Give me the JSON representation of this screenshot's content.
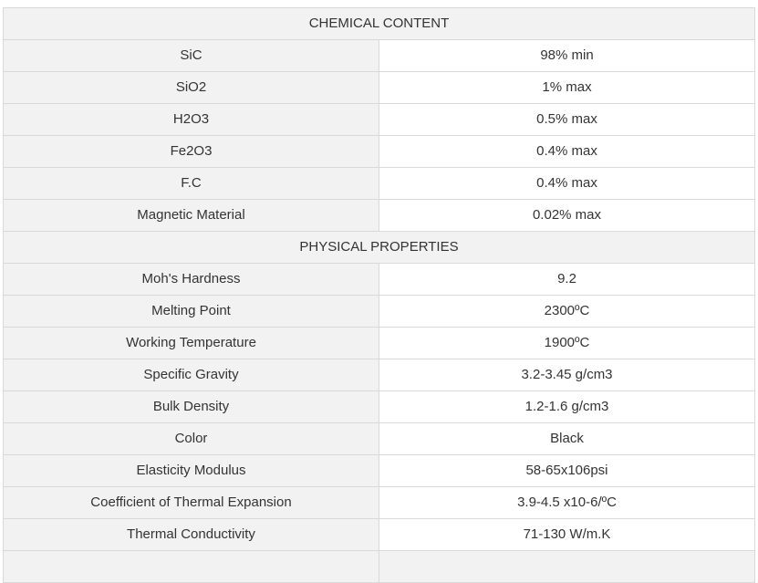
{
  "sections": [
    {
      "title": "CHEMICAL CONTENT",
      "rows": [
        {
          "label": "SiC",
          "value": "98% min"
        },
        {
          "label": "SiO2",
          "value": "1% max"
        },
        {
          "label": "H2O3",
          "value": "0.5% max"
        },
        {
          "label": "Fe2O3",
          "value": "0.4% max"
        },
        {
          "label": "F.C",
          "value": "0.4% max"
        },
        {
          "label": "Magnetic Material",
          "value": "0.02% max"
        }
      ]
    },
    {
      "title": "PHYSICAL PROPERTIES",
      "rows": [
        {
          "label": "Moh's Hardness",
          "value": "9.2"
        },
        {
          "label": "Melting Point",
          "value": "2300ºC"
        },
        {
          "label": "Working Temperature",
          "value": "1900ºC"
        },
        {
          "label": "Specific Gravity",
          "value": "3.2-3.45 g/cm3"
        },
        {
          "label": "Bulk Density",
          "value": "1.2-1.6 g/cm3"
        },
        {
          "label": "Color",
          "value": "Black"
        },
        {
          "label": "Elasticity Modulus",
          "value": "58-65x106psi"
        },
        {
          "label": "Coefficient of Thermal Expansion",
          "value": "3.9-4.5 x10-6/ºC"
        },
        {
          "label": "Thermal Conductivity",
          "value": "71-130 W/m.K"
        }
      ]
    }
  ],
  "colors": {
    "header_bg": "#f2f2f2",
    "label_bg": "#f2f2f2",
    "value_bg": "#ffffff",
    "border": "#d9d9d9",
    "text": "#333333"
  }
}
